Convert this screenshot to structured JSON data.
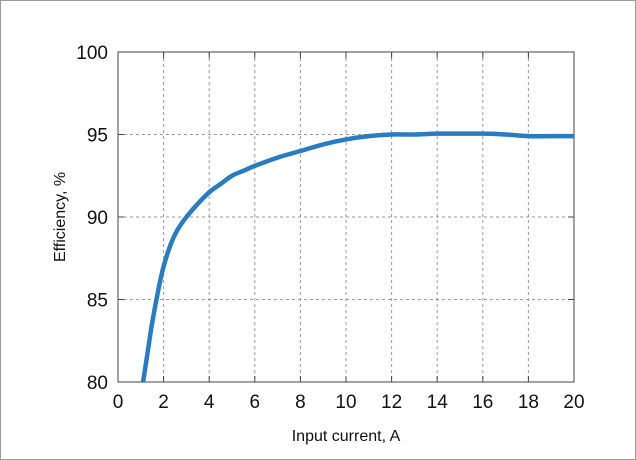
{
  "chart_data": {
    "type": "line",
    "title": "",
    "xlabel": "Input current, A",
    "ylabel": "Efficiency, %",
    "xlim": [
      0,
      20
    ],
    "ylim": [
      80,
      100
    ],
    "xticks": [
      0,
      2,
      4,
      6,
      8,
      10,
      12,
      14,
      16,
      18,
      20
    ],
    "yticks": [
      80,
      85,
      90,
      95,
      100
    ],
    "xtick_labels": [
      "0",
      "2",
      "4",
      "6",
      "8",
      "10",
      "12",
      "14",
      "16",
      "18",
      "20"
    ],
    "ytick_labels": [
      "80",
      "85",
      "90",
      "95",
      "100"
    ],
    "grid": true,
    "legend": "none",
    "series": [
      {
        "color": "#2a7bbf",
        "x": [
          1.1,
          1.3,
          1.5,
          1.8,
          2.0,
          2.3,
          2.6,
          3.0,
          3.5,
          4.0,
          4.5,
          5.0,
          5.5,
          6.0,
          7.0,
          8.0,
          9.0,
          10.0,
          11.0,
          12.0,
          13.0,
          14.0,
          15.0,
          16.0,
          17.0,
          18.0,
          19.0,
          20.0
        ],
        "y": [
          80.0,
          81.8,
          83.6,
          85.8,
          87.0,
          88.3,
          89.2,
          90.0,
          90.8,
          91.5,
          92.0,
          92.5,
          92.8,
          93.1,
          93.6,
          94.0,
          94.4,
          94.7,
          94.9,
          95.0,
          95.0,
          95.05,
          95.05,
          95.05,
          95.0,
          94.9,
          94.9,
          94.9
        ]
      }
    ]
  }
}
